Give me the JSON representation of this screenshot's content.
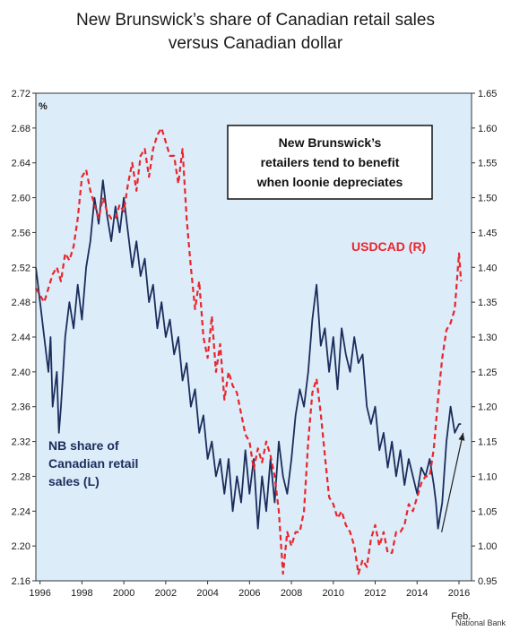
{
  "title_line1": "New Brunswick’s share of Canadian retail sales",
  "title_line2": "versus Canadian dollar",
  "source": "National Bank",
  "chart_data": {
    "type": "line",
    "left_unit": "%",
    "ylim_left": [
      2.16,
      2.72
    ],
    "ylim_right": [
      0.95,
      1.65
    ],
    "left_ticks": [
      "2.16",
      "2.20",
      "2.24",
      "2.28",
      "2.32",
      "2.36",
      "2.40",
      "2.44",
      "2.48",
      "2.52",
      "2.56",
      "2.60",
      "2.64",
      "2.68",
      "2.72"
    ],
    "right_ticks": [
      "0.95",
      "1.00",
      "1.05",
      "1.10",
      "1.15",
      "1.20",
      "1.25",
      "1.30",
      "1.35",
      "1.40",
      "1.45",
      "1.50",
      "1.55",
      "1.60",
      "1.65"
    ],
    "x_ticks": [
      "1996",
      "1998",
      "2000",
      "2002",
      "2004",
      "2006",
      "2008",
      "2010",
      "2012",
      "2014",
      "2016"
    ],
    "x_extra_label": "Feb.",
    "xlim": [
      1995.8,
      2016.6
    ],
    "annotation": [
      "New Brunswick’s",
      "retailers tend to benefit",
      "when loonie depreciates"
    ],
    "arrow": {
      "from": [
        2015.0,
        2.22
      ],
      "to": [
        2016.2,
        2.33
      ]
    },
    "series": [
      {
        "name": "NB share of Canadian retail sales (L)",
        "label_lines": [
          "NB share of",
          "Canadian retail",
          "sales (L)"
        ],
        "axis": "left",
        "color": "#1b2d5c",
        "style": "solid",
        "x": [
          1995.8,
          1996.0,
          1996.2,
          1996.4,
          1996.5,
          1996.6,
          1996.8,
          1996.9,
          1997.0,
          1997.1,
          1997.2,
          1997.4,
          1997.6,
          1997.8,
          1998.0,
          1998.2,
          1998.4,
          1998.6,
          1998.8,
          1999.0,
          1999.2,
          1999.4,
          1999.6,
          1999.8,
          2000.0,
          2000.2,
          2000.4,
          2000.6,
          2000.8,
          2001.0,
          2001.2,
          2001.4,
          2001.6,
          2001.8,
          2002.0,
          2002.2,
          2002.4,
          2002.6,
          2002.8,
          2003.0,
          2003.2,
          2003.4,
          2003.6,
          2003.8,
          2004.0,
          2004.2,
          2004.4,
          2004.6,
          2004.8,
          2005.0,
          2005.2,
          2005.4,
          2005.6,
          2005.8,
          2006.0,
          2006.2,
          2006.4,
          2006.6,
          2006.8,
          2007.0,
          2007.2,
          2007.4,
          2007.6,
          2007.8,
          2008.0,
          2008.2,
          2008.4,
          2008.6,
          2008.8,
          2009.0,
          2009.2,
          2009.4,
          2009.6,
          2009.8,
          2010.0,
          2010.2,
          2010.4,
          2010.6,
          2010.8,
          2011.0,
          2011.2,
          2011.4,
          2011.6,
          2011.8,
          2012.0,
          2012.2,
          2012.4,
          2012.6,
          2012.8,
          2013.0,
          2013.2,
          2013.4,
          2013.6,
          2013.8,
          2014.0,
          2014.2,
          2014.4,
          2014.6,
          2014.8,
          2014.9,
          2015.0,
          2015.2,
          2015.4,
          2015.6,
          2015.8,
          2016.0,
          2016.1
        ],
        "y": [
          2.52,
          2.48,
          2.44,
          2.4,
          2.44,
          2.36,
          2.4,
          2.33,
          2.36,
          2.4,
          2.44,
          2.48,
          2.45,
          2.5,
          2.46,
          2.52,
          2.55,
          2.6,
          2.57,
          2.62,
          2.58,
          2.55,
          2.59,
          2.56,
          2.6,
          2.56,
          2.52,
          2.55,
          2.51,
          2.53,
          2.48,
          2.5,
          2.45,
          2.48,
          2.44,
          2.46,
          2.42,
          2.44,
          2.39,
          2.41,
          2.36,
          2.38,
          2.33,
          2.35,
          2.3,
          2.32,
          2.28,
          2.3,
          2.26,
          2.3,
          2.24,
          2.28,
          2.25,
          2.31,
          2.26,
          2.3,
          2.22,
          2.28,
          2.24,
          2.3,
          2.25,
          2.32,
          2.28,
          2.26,
          2.3,
          2.35,
          2.38,
          2.36,
          2.4,
          2.46,
          2.5,
          2.43,
          2.45,
          2.4,
          2.44,
          2.38,
          2.45,
          2.42,
          2.4,
          2.44,
          2.41,
          2.42,
          2.36,
          2.34,
          2.36,
          2.31,
          2.33,
          2.29,
          2.32,
          2.28,
          2.31,
          2.27,
          2.3,
          2.28,
          2.26,
          2.29,
          2.28,
          2.3,
          2.27,
          2.25,
          2.22,
          2.25,
          2.32,
          2.36,
          2.33,
          2.34,
          2.34
        ]
      },
      {
        "name": "USDCAD (R)",
        "label_lines": [
          "USDCAD (R)"
        ],
        "axis": "right",
        "color": "#e8262c",
        "style": "dashed",
        "x": [
          1995.8,
          1996.0,
          1996.2,
          1996.4,
          1996.6,
          1996.8,
          1997.0,
          1997.2,
          1997.4,
          1997.6,
          1997.8,
          1998.0,
          1998.2,
          1998.4,
          1998.6,
          1998.8,
          1999.0,
          1999.2,
          1999.4,
          1999.6,
          1999.8,
          2000.0,
          2000.2,
          2000.4,
          2000.6,
          2000.8,
          2001.0,
          2001.2,
          2001.4,
          2001.6,
          2001.8,
          2002.0,
          2002.2,
          2002.4,
          2002.6,
          2002.8,
          2003.0,
          2003.2,
          2003.4,
          2003.6,
          2003.8,
          2004.0,
          2004.2,
          2004.4,
          2004.6,
          2004.8,
          2005.0,
          2005.2,
          2005.4,
          2005.6,
          2005.8,
          2006.0,
          2006.2,
          2006.4,
          2006.6,
          2006.8,
          2007.0,
          2007.2,
          2007.4,
          2007.6,
          2007.8,
          2008.0,
          2008.2,
          2008.4,
          2008.6,
          2008.8,
          2009.0,
          2009.2,
          2009.4,
          2009.6,
          2009.8,
          2010.0,
          2010.2,
          2010.4,
          2010.6,
          2010.8,
          2011.0,
          2011.2,
          2011.4,
          2011.6,
          2011.8,
          2012.0,
          2012.2,
          2012.4,
          2012.6,
          2012.8,
          2013.0,
          2013.2,
          2013.4,
          2013.6,
          2013.8,
          2014.0,
          2014.2,
          2014.4,
          2014.6,
          2014.8,
          2015.0,
          2015.2,
          2015.4,
          2015.6,
          2015.8,
          2016.0,
          2016.1
        ],
        "y": [
          1.37,
          1.36,
          1.35,
          1.37,
          1.39,
          1.4,
          1.38,
          1.42,
          1.41,
          1.43,
          1.47,
          1.53,
          1.54,
          1.51,
          1.49,
          1.47,
          1.5,
          1.48,
          1.47,
          1.47,
          1.49,
          1.48,
          1.52,
          1.55,
          1.51,
          1.56,
          1.57,
          1.53,
          1.57,
          1.59,
          1.6,
          1.58,
          1.56,
          1.56,
          1.52,
          1.57,
          1.47,
          1.4,
          1.34,
          1.38,
          1.3,
          1.27,
          1.33,
          1.25,
          1.29,
          1.21,
          1.25,
          1.23,
          1.22,
          1.19,
          1.16,
          1.15,
          1.11,
          1.14,
          1.12,
          1.15,
          1.13,
          1.1,
          1.05,
          0.96,
          1.02,
          1.0,
          1.02,
          1.02,
          1.05,
          1.15,
          1.22,
          1.24,
          1.19,
          1.13,
          1.07,
          1.06,
          1.04,
          1.05,
          1.03,
          1.02,
          1.0,
          0.96,
          0.98,
          0.97,
          1.01,
          1.03,
          1.0,
          1.02,
          0.99,
          0.99,
          1.02,
          1.02,
          1.03,
          1.06,
          1.05,
          1.07,
          1.09,
          1.1,
          1.1,
          1.14,
          1.21,
          1.27,
          1.31,
          1.32,
          1.34,
          1.42,
          1.38
        ]
      }
    ]
  }
}
